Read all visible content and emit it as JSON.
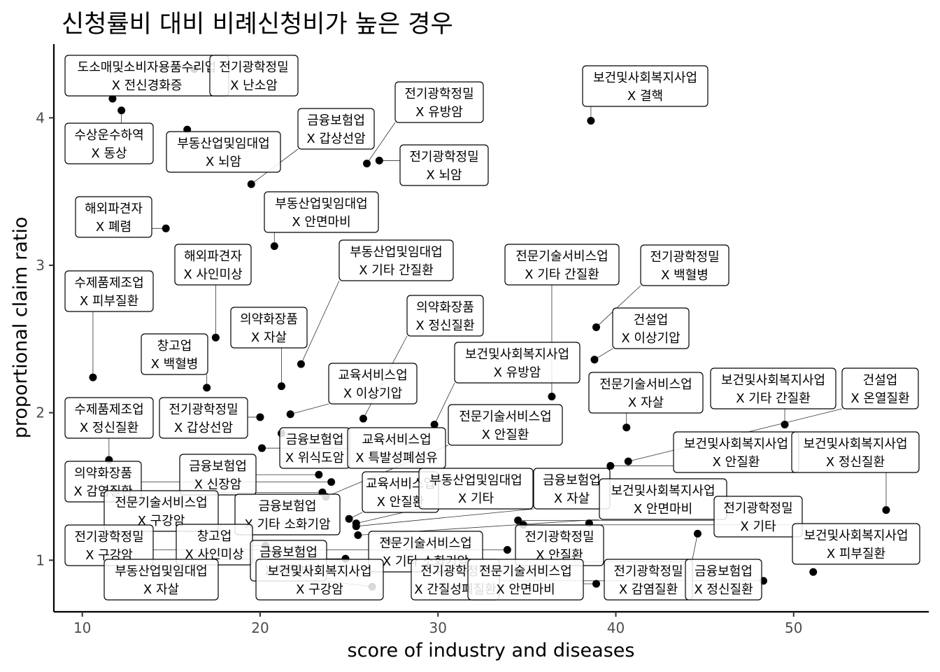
{
  "chart_data": {
    "type": "scatter",
    "title": "신청률비 대비 비례신청비가 높은 경우",
    "xlabel": "score of industry and diseases",
    "ylabel": "proportional claim ratio",
    "xlim": [
      8.4,
      57.6
    ],
    "ylim": [
      0.65,
      4.5
    ],
    "x_ticks": [
      10,
      20,
      30,
      40,
      50
    ],
    "y_ticks": [
      1,
      2,
      3,
      4
    ],
    "grid": false,
    "point_color": "#000000",
    "points": [
      {
        "x": 16.3,
        "y": 4.33,
        "industry": "도소매및소비자용품수리업",
        "disease": "X 전신경화증"
      },
      {
        "x": 11.7,
        "y": 4.13,
        "industry": "도소매및소비자용품수리업",
        "disease": "X 전신경화증"
      },
      {
        "x": 12.2,
        "y": 4.05,
        "industry": "수상운수하역",
        "disease": "X 동상"
      },
      {
        "x": 15.9,
        "y": 3.92,
        "industry": "부동산업및임대업",
        "disease": "X 뇌암"
      },
      {
        "x": 19.5,
        "y": 3.55,
        "industry": "금융보험업",
        "disease": "X 갑상선암"
      },
      {
        "x": 26.0,
        "y": 3.69,
        "industry": "전기광학정밀",
        "disease": "X 유방암"
      },
      {
        "x": 26.7,
        "y": 3.71,
        "industry": "전기광학정밀",
        "disease": "X 뇌암"
      },
      {
        "x": 38.6,
        "y": 3.98,
        "industry": "보건및사회복지사업",
        "disease": "X 결핵"
      },
      {
        "x": 14.7,
        "y": 3.25,
        "industry": "해외파견자",
        "disease": "X 폐렴"
      },
      {
        "x": 20.8,
        "y": 3.13,
        "industry": "부동산업및임대업",
        "disease": "X 안면마비"
      },
      {
        "x": 17.5,
        "y": 2.51,
        "industry": "해외파견자",
        "disease": "X 사인미상"
      },
      {
        "x": 10.6,
        "y": 2.24,
        "industry": "수제품제조업",
        "disease": "X 피부질환"
      },
      {
        "x": 22.3,
        "y": 2.33,
        "industry": "부동산업및임대업",
        "disease": "X 기타 간질환"
      },
      {
        "x": 21.2,
        "y": 2.18,
        "industry": "의약화장품",
        "disease": "X 자살"
      },
      {
        "x": 17.0,
        "y": 2.17,
        "industry": "창고업",
        "disease": "X 백혈병"
      },
      {
        "x": 21.7,
        "y": 1.99,
        "industry": "교육서비스업",
        "disease": "X 이상기압"
      },
      {
        "x": 20.0,
        "y": 1.97,
        "industry": "전기광학정밀",
        "disease": "X 갑상선암"
      },
      {
        "x": 25.8,
        "y": 1.96,
        "industry": "의약화장품",
        "disease": "X 정신질환"
      },
      {
        "x": 29.8,
        "y": 1.92,
        "industry": "보건및사회복지사업",
        "disease": "X 유방암"
      },
      {
        "x": 36.4,
        "y": 2.11,
        "industry": "전문기술서비스업",
        "disease": "X 기타 간질환"
      },
      {
        "x": 38.9,
        "y": 2.58,
        "industry": "전기광학정밀",
        "disease": "X 백혈병"
      },
      {
        "x": 38.8,
        "y": 2.36,
        "industry": "건설업",
        "disease": "X 이상기압"
      },
      {
        "x": 40.6,
        "y": 1.9,
        "industry": "전문기술서비스업",
        "disease": "X 자살"
      },
      {
        "x": 49.5,
        "y": 1.92,
        "industry": "보건및사회복지사업",
        "disease": "X 기타 간질환"
      },
      {
        "x": 40.7,
        "y": 1.67,
        "industry": "건설업",
        "disease": "X 온열질환"
      },
      {
        "x": 39.7,
        "y": 1.64,
        "industry": "보건및사회복지사업",
        "disease": "X 안질환"
      },
      {
        "x": 55.2,
        "y": 1.34,
        "industry": "보건및사회복지사업",
        "disease": "X 정신질환"
      },
      {
        "x": 21.2,
        "y": 1.86,
        "industry": "금융보험업",
        "disease": "X 위식도암"
      },
      {
        "x": 20.1,
        "y": 1.76,
        "industry": "교육서비스업",
        "disease": "X 특발성폐섬유"
      },
      {
        "x": 11.5,
        "y": 1.68,
        "industry": "수제품제조업",
        "disease": "X 정신질환"
      },
      {
        "x": 23.3,
        "y": 1.58,
        "industry": "금융보험업",
        "disease": "X 신장암"
      },
      {
        "x": 24.0,
        "y": 1.53,
        "industry": "의약화장품",
        "disease": "X 감염질환"
      },
      {
        "x": 23.5,
        "y": 1.46,
        "industry": "전문기술서비스업",
        "disease": "X 구강암"
      },
      {
        "x": 23.7,
        "y": 1.43,
        "industry": "금융보험업",
        "disease": "X 기타 소화기암"
      },
      {
        "x": 25.0,
        "y": 1.28,
        "industry": "전문기술서비스업",
        "disease": "X 안질환"
      },
      {
        "x": 25.4,
        "y": 1.25,
        "industry": "부동산업및임대업",
        "disease": "X 기타"
      },
      {
        "x": 25.4,
        "y": 1.23,
        "industry": "금융보험업",
        "disease": "X 자살"
      },
      {
        "x": 25.5,
        "y": 1.17,
        "industry": "보건및사회복지사업",
        "disease": "X 안면마비"
      },
      {
        "x": 27.2,
        "y": 1.13,
        "industry": "전문기술서비스업",
        "disease": "X 기타 소화기암"
      },
      {
        "x": 34.5,
        "y": 1.27,
        "industry": "전기광학정밀",
        "disease": "X 기타"
      },
      {
        "x": 34.8,
        "y": 1.24,
        "industry": "보건및사회복지사업",
        "disease": "X 피부질환"
      },
      {
        "x": 38.5,
        "y": 1.25,
        "industry": "전기광학정밀",
        "disease": "X 안질환"
      },
      {
        "x": 33.9,
        "y": 1.07,
        "industry": "전기광학정밀",
        "disease": "X 안질환"
      },
      {
        "x": 37.8,
        "y": 0.99,
        "industry": "금융보험업",
        "disease": "X 정신질환"
      },
      {
        "x": 44.6,
        "y": 1.18,
        "industry": "전기광학정밀",
        "disease": "X 감염질환"
      },
      {
        "x": 20.3,
        "y": 1.1,
        "industry": "창고업",
        "disease": "X 사인미상"
      },
      {
        "x": 24.8,
        "y": 1.01,
        "industry": "부동산업및임대업",
        "disease": "X 자살"
      },
      {
        "x": 26.8,
        "y": 0.97,
        "industry": "보건및사회복지사업",
        "disease": "X 구강암"
      },
      {
        "x": 26.3,
        "y": 0.82,
        "industry": "금융보험업",
        "disease": "X 백혈병"
      },
      {
        "x": 38.9,
        "y": 0.84,
        "industry": "전문기술서비스업",
        "disease": "X 안면마비"
      },
      {
        "x": 48.3,
        "y": 0.86,
        "industry": "전기광학정밀",
        "disease": "X 간질성폐질환"
      },
      {
        "x": 51.1,
        "y": 0.92,
        "industry": "보건및사회복지사업",
        "disease": "X 피부질환"
      }
    ],
    "labels": [
      {
        "industry": "도소매및소비자용품수리업",
        "disease": "X 전신경화증"
      },
      {
        "industry": "전기광학정밀",
        "disease": "X 난소암"
      },
      {
        "industry": "보건및사회복지사업",
        "disease": "X 결핵"
      },
      {
        "industry": "전기광학정밀",
        "disease": "X 유방암"
      },
      {
        "industry": "금융보험업",
        "disease": "X 갑상선암"
      },
      {
        "industry": "수상운수하역",
        "disease": "X 동상"
      },
      {
        "industry": "부동산업및임대업",
        "disease": "X 뇌암"
      },
      {
        "industry": "전기광학정밀",
        "disease": "X 뇌암"
      },
      {
        "industry": "해외파견자",
        "disease": "X 폐렴"
      },
      {
        "industry": "부동산업및임대업",
        "disease": "X 안면마비"
      },
      {
        "industry": "부동산업및임대업",
        "disease": "X 기타 간질환"
      },
      {
        "industry": "해외파견자",
        "disease": "X 사인미상"
      },
      {
        "industry": "전문기술서비스업",
        "disease": "X 기타 간질환"
      },
      {
        "industry": "전기광학정밀",
        "disease": "X 백혈병"
      },
      {
        "industry": "수제품제조업",
        "disease": "X 피부질환"
      },
      {
        "industry": "의약화장품",
        "disease": "X 정신질환"
      },
      {
        "industry": "의약화장품",
        "disease": "X 자살"
      },
      {
        "industry": "건설업",
        "disease": "X 이상기압"
      },
      {
        "industry": "창고업",
        "disease": "X 백혈병"
      },
      {
        "industry": "보건및사회복지사업",
        "disease": "X 유방암"
      },
      {
        "industry": "교육서비스업",
        "disease": "X 이상기압"
      },
      {
        "industry": "전문기술서비스업",
        "disease": "X 자살"
      },
      {
        "industry": "보건및사회복지사업",
        "disease": "X 기타 간질환"
      },
      {
        "industry": "건설업",
        "disease": "X 온열질환"
      },
      {
        "industry": "수제품제조업",
        "disease": "X 정신질환"
      },
      {
        "industry": "전기광학정밀",
        "disease": "X 갑상선암"
      },
      {
        "industry": "전문기술서비스업",
        "disease": "X 안질환"
      },
      {
        "industry": "금융보험업",
        "disease": "X 위식도암"
      },
      {
        "industry": "교육서비스업",
        "disease": "X 특발성폐섬유"
      },
      {
        "industry": "보건및사회복지사업",
        "disease": "X 안질환"
      },
      {
        "industry": "보건및사회복지사업",
        "disease": "X 정신질환"
      },
      {
        "industry": "의약화장품",
        "disease": "X 감염질환"
      },
      {
        "industry": "금융보험업",
        "disease": "X 신장암"
      },
      {
        "industry": "교육서비스업",
        "disease": "X 안질환"
      },
      {
        "industry": "부동산업및임대업",
        "disease": "X 기타"
      },
      {
        "industry": "금융보험업",
        "disease": "X 자살"
      },
      {
        "industry": "보건및사회복지사업",
        "disease": "X 안면마비"
      },
      {
        "industry": "전문기술서비스업",
        "disease": "X 구강암"
      },
      {
        "industry": "금융보험업",
        "disease": "X 기타 소화기암"
      },
      {
        "industry": "전기광학정밀",
        "disease": "X 기타"
      },
      {
        "industry": "전기광학정밀",
        "disease": "X 구강암"
      },
      {
        "industry": "창고업",
        "disease": "X 사인미상"
      },
      {
        "industry": "전문기술서비스업",
        "disease": "X 기타 소화기암"
      },
      {
        "industry": "전기광학정밀",
        "disease": "X 안질환"
      },
      {
        "industry": "보건및사회복지사업",
        "disease": "X 피부질환"
      },
      {
        "industry": "금융보험업",
        "disease": "X 백혈병"
      },
      {
        "industry": "부동산업및임대업",
        "disease": "X 자살"
      },
      {
        "industry": "보건및사회복지사업",
        "disease": "X 구강암"
      },
      {
        "industry": "전기광학정밀",
        "disease": "X 간질성폐질환"
      },
      {
        "industry": "전문기술서비스업",
        "disease": "X 안면마비"
      },
      {
        "industry": "전기광학정밀",
        "disease": "X 감염질환"
      },
      {
        "industry": "금융보험업",
        "disease": "X 정신질환"
      }
    ]
  }
}
